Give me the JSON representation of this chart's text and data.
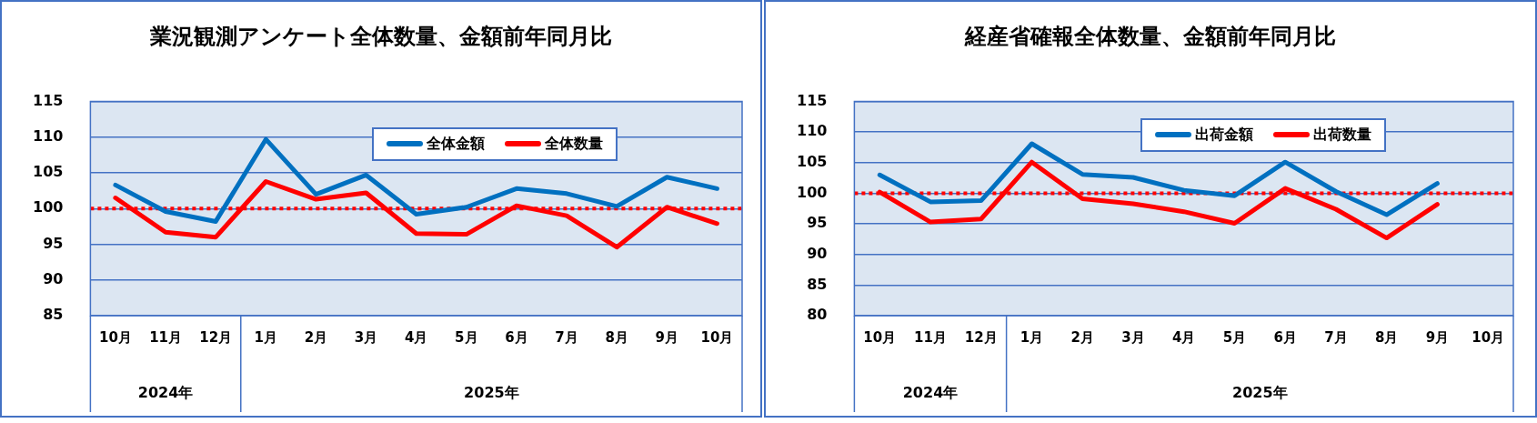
{
  "chart_data": [
    {
      "type": "line",
      "title": "業況観測アンケート全体数量、金額前年同月比",
      "categories": [
        "10月",
        "11月",
        "12月",
        "1月",
        "2月",
        "3月",
        "4月",
        "5月",
        "6月",
        "7月",
        "8月",
        "9月",
        "10月"
      ],
      "series": [
        {
          "name": "全体金額",
          "color": "#0070c0",
          "values": [
            103.3,
            99.6,
            98.2,
            109.7,
            102.0,
            104.7,
            99.2,
            100.2,
            102.8,
            102.1,
            100.3,
            104.4,
            102.8
          ]
        },
        {
          "name": "全体数量",
          "color": "#ff0000",
          "values": [
            101.5,
            96.7,
            96.0,
            103.8,
            101.3,
            102.2,
            96.5,
            96.4,
            100.4,
            99.0,
            94.6,
            100.2,
            97.9
          ]
        }
      ],
      "ylim": [
        85,
        115
      ],
      "yticks": [
        85,
        90,
        95,
        100,
        105,
        110,
        115
      ],
      "grid": "y",
      "legend": "top",
      "marker": "none",
      "line_style": "solid",
      "ref_lines": [
        {
          "axis": "y",
          "value": 100,
          "color": "#ff0000",
          "line_style": "dotted"
        }
      ],
      "annotations": [
        "2024年",
        "2025年"
      ]
    },
    {
      "type": "line",
      "title": "経産省確報全体数量、金額前年同月比",
      "categories": [
        "10月",
        "11月",
        "12月",
        "1月",
        "2月",
        "3月",
        "4月",
        "5月",
        "6月",
        "7月",
        "8月",
        "9月",
        "10月"
      ],
      "series": [
        {
          "name": "出荷金額",
          "color": "#0070c0",
          "values": [
            103.0,
            98.6,
            98.8,
            108.1,
            103.1,
            102.6,
            100.5,
            99.6,
            105.1,
            100.3,
            96.5,
            101.6,
            null
          ]
        },
        {
          "name": "出荷数量",
          "color": "#ff0000",
          "values": [
            100.2,
            95.3,
            95.8,
            105.1,
            99.1,
            98.3,
            97.0,
            95.1,
            100.8,
            97.4,
            92.7,
            98.2,
            null
          ]
        }
      ],
      "ylim": [
        80,
        115
      ],
      "yticks": [
        80,
        85,
        90,
        95,
        100,
        105,
        110,
        115
      ],
      "grid": "y",
      "legend": "top",
      "marker": "none",
      "line_style": "solid",
      "ref_lines": [
        {
          "axis": "y",
          "value": 100,
          "color": "#ff0000",
          "line_style": "dotted"
        }
      ],
      "annotations": [
        "2024年",
        "2025年"
      ]
    }
  ]
}
